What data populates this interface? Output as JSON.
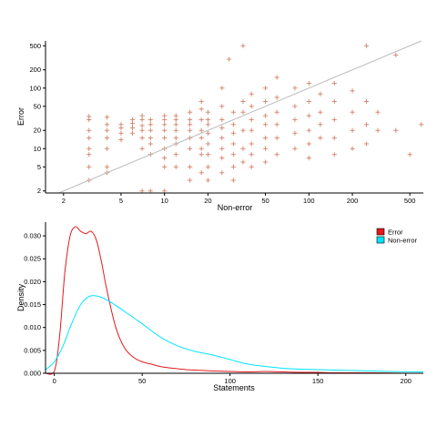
{
  "chart_data": [
    {
      "type": "scatter",
      "xlabel": "Non-error",
      "ylabel": "Error",
      "x_scale": "log",
      "y_scale": "log",
      "xlim": [
        1.5,
        620
      ],
      "ylim": [
        1.85,
        600
      ],
      "x_ticks": [
        2,
        5,
        10,
        20,
        50,
        100,
        200,
        500
      ],
      "y_ticks": [
        2,
        5,
        10,
        20,
        50,
        100,
        200,
        500
      ],
      "reference_line": "y = x",
      "marker": "+",
      "point_color": "#D4826A",
      "line_color": "#bdbdbd",
      "points_note": "approximately 1000 points, dense in x 10–200 and y 5–100",
      "points": [
        [
          3,
          34
        ],
        [
          3,
          30
        ],
        [
          3,
          20
        ],
        [
          3,
          15
        ],
        [
          3,
          10
        ],
        [
          3,
          8
        ],
        [
          3,
          5
        ],
        [
          3,
          3
        ],
        [
          4,
          33
        ],
        [
          4,
          25
        ],
        [
          4,
          20
        ],
        [
          4,
          15
        ],
        [
          4,
          10
        ],
        [
          4,
          5
        ],
        [
          4,
          4
        ],
        [
          5,
          25
        ],
        [
          5,
          22
        ],
        [
          5,
          18
        ],
        [
          5,
          14
        ],
        [
          6,
          30
        ],
        [
          6,
          26
        ],
        [
          6,
          22
        ],
        [
          6,
          18
        ],
        [
          7,
          35
        ],
        [
          7,
          30
        ],
        [
          7,
          24
        ],
        [
          7,
          20
        ],
        [
          7,
          15
        ],
        [
          7,
          10
        ],
        [
          7,
          2
        ],
        [
          8,
          30
        ],
        [
          8,
          25
        ],
        [
          8,
          20
        ],
        [
          8,
          15
        ],
        [
          8,
          12
        ],
        [
          8,
          8
        ],
        [
          8,
          2
        ],
        [
          10,
          35
        ],
        [
          10,
          30
        ],
        [
          10,
          25
        ],
        [
          10,
          20
        ],
        [
          10,
          15
        ],
        [
          10,
          10
        ],
        [
          10,
          7
        ],
        [
          10,
          5
        ],
        [
          10,
          2
        ],
        [
          12,
          35
        ],
        [
          12,
          30
        ],
        [
          12,
          25
        ],
        [
          12,
          20
        ],
        [
          12,
          15
        ],
        [
          12,
          12
        ],
        [
          12,
          8
        ],
        [
          12,
          5
        ],
        [
          15,
          40
        ],
        [
          15,
          30
        ],
        [
          15,
          25
        ],
        [
          15,
          20
        ],
        [
          15,
          15
        ],
        [
          15,
          10
        ],
        [
          15,
          5
        ],
        [
          15,
          3
        ],
        [
          18,
          60
        ],
        [
          18,
          45
        ],
        [
          18,
          30
        ],
        [
          18,
          20
        ],
        [
          18,
          15
        ],
        [
          18,
          10
        ],
        [
          18,
          8
        ],
        [
          18,
          4
        ],
        [
          20,
          40
        ],
        [
          20,
          30
        ],
        [
          20,
          25
        ],
        [
          20,
          18
        ],
        [
          20,
          12
        ],
        [
          20,
          8
        ],
        [
          20,
          5
        ],
        [
          20,
          3
        ],
        [
          25,
          100
        ],
        [
          25,
          50
        ],
        [
          25,
          30
        ],
        [
          25,
          22
        ],
        [
          25,
          15
        ],
        [
          25,
          10
        ],
        [
          25,
          7
        ],
        [
          25,
          4
        ],
        [
          28,
          300
        ],
        [
          30,
          40
        ],
        [
          30,
          25
        ],
        [
          30,
          18
        ],
        [
          30,
          12
        ],
        [
          30,
          8
        ],
        [
          30,
          5
        ],
        [
          30,
          3
        ],
        [
          35,
          500
        ],
        [
          35,
          60
        ],
        [
          35,
          40
        ],
        [
          35,
          20
        ],
        [
          35,
          10
        ],
        [
          35,
          6
        ],
        [
          40,
          80
        ],
        [
          40,
          50
        ],
        [
          40,
          30
        ],
        [
          40,
          20
        ],
        [
          40,
          12
        ],
        [
          40,
          8
        ],
        [
          40,
          5
        ],
        [
          50,
          100
        ],
        [
          50,
          60
        ],
        [
          50,
          35
        ],
        [
          50,
          25
        ],
        [
          50,
          15
        ],
        [
          50,
          10
        ],
        [
          50,
          6
        ],
        [
          60,
          150
        ],
        [
          60,
          70
        ],
        [
          60,
          40
        ],
        [
          60,
          25
        ],
        [
          60,
          15
        ],
        [
          60,
          8
        ],
        [
          80,
          100
        ],
        [
          80,
          50
        ],
        [
          80,
          30
        ],
        [
          80,
          18
        ],
        [
          80,
          10
        ],
        [
          100,
          120
        ],
        [
          100,
          60
        ],
        [
          100,
          35
        ],
        [
          100,
          20
        ],
        [
          100,
          12
        ],
        [
          100,
          7
        ],
        [
          120,
          80
        ],
        [
          120,
          40
        ],
        [
          120,
          25
        ],
        [
          120,
          15
        ],
        [
          150,
          120
        ],
        [
          150,
          60
        ],
        [
          150,
          30
        ],
        [
          150,
          15
        ],
        [
          150,
          8
        ],
        [
          200,
          90
        ],
        [
          200,
          40
        ],
        [
          200,
          20
        ],
        [
          200,
          10
        ],
        [
          250,
          500
        ],
        [
          250,
          60
        ],
        [
          250,
          25
        ],
        [
          250,
          12
        ],
        [
          300,
          40
        ],
        [
          300,
          20
        ],
        [
          400,
          350
        ],
        [
          400,
          20
        ],
        [
          500,
          8
        ],
        [
          600,
          25
        ]
      ]
    },
    {
      "type": "line",
      "xlabel": "Statements",
      "ylabel": "Density",
      "xlim": [
        -5,
        210
      ],
      "ylim": [
        0,
        0.033
      ],
      "x_ticks": [
        0,
        50,
        100,
        150,
        200
      ],
      "y_ticks": [
        0.0,
        0.005,
        0.01,
        0.015,
        0.02,
        0.025,
        0.03
      ],
      "y_tick_labels": [
        "0.000",
        "0.005",
        "0.010",
        "0.015",
        "0.020",
        "0.025",
        "0.030"
      ],
      "legend_placement": "top-right",
      "series": [
        {
          "name": "Error",
          "color": "#E41A1C",
          "x": [
            -5,
            0,
            3,
            6,
            9,
            12,
            15,
            18,
            21,
            24,
            27,
            30,
            35,
            40,
            45,
            50,
            55,
            60,
            65,
            70,
            75,
            80,
            90,
            100,
            110,
            120,
            130,
            140,
            150,
            160,
            180,
            200,
            210
          ],
          "values": [
            0.0,
            0.0005,
            0.008,
            0.022,
            0.03,
            0.032,
            0.031,
            0.0305,
            0.031,
            0.029,
            0.024,
            0.018,
            0.01,
            0.0055,
            0.0035,
            0.0025,
            0.002,
            0.0015,
            0.0012,
            0.001,
            0.0008,
            0.0007,
            0.0005,
            0.0004,
            0.0003,
            0.0004,
            0.0003,
            0.0002,
            0.0002,
            0.0001,
            0.0001,
            0.0,
            0.0
          ]
        },
        {
          "name": "Non-error",
          "color": "#00E5FF",
          "x": [
            -5,
            0,
            5,
            10,
            15,
            20,
            25,
            30,
            35,
            40,
            50,
            60,
            70,
            80,
            90,
            100,
            110,
            120,
            130,
            140,
            150,
            170,
            190,
            210
          ],
          "values": [
            0.0008,
            0.0025,
            0.006,
            0.011,
            0.015,
            0.0168,
            0.0168,
            0.016,
            0.0148,
            0.0135,
            0.0108,
            0.008,
            0.006,
            0.0048,
            0.004,
            0.003,
            0.002,
            0.0015,
            0.0011,
            0.0009,
            0.0008,
            0.0006,
            0.0004,
            0.0003
          ]
        }
      ]
    }
  ]
}
